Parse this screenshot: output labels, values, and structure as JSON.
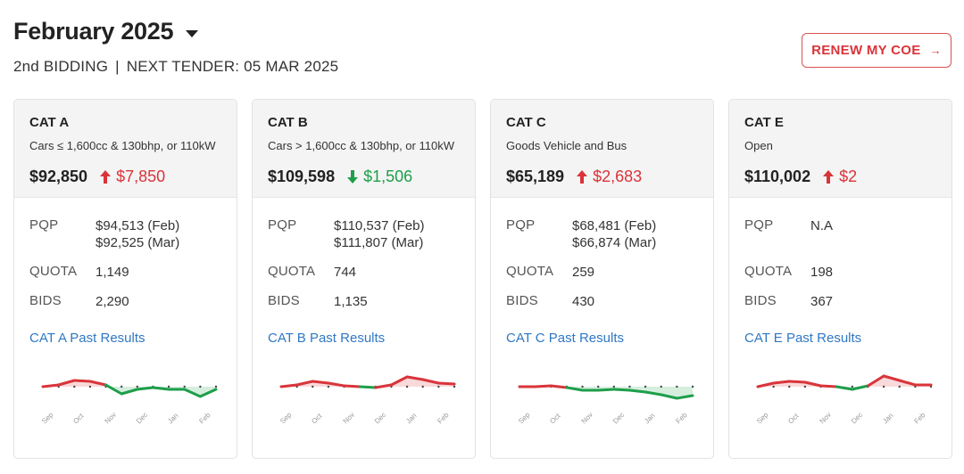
{
  "header": {
    "title": "February 2025",
    "bidding": "2nd BIDDING",
    "separator": "|",
    "next_tender": "NEXT TENDER: 05 MAR 2025"
  },
  "renew_button": {
    "label": "RENEW MY COE",
    "arrow": "→"
  },
  "labels": {
    "pqp": "PQP",
    "quota": "QUOTA",
    "bids": "BIDS"
  },
  "colors": {
    "up": "#d9343a",
    "down": "#1e9e4a",
    "link": "#2f78c4"
  },
  "chart_data": [
    {
      "type": "line",
      "x": [
        "Sep",
        "",
        "Oct",
        "",
        "Nov",
        "",
        "Dec",
        "",
        "Jan",
        "",
        "Feb",
        ""
      ],
      "values": [
        0.52,
        0.5,
        0.45,
        0.46,
        0.5,
        0.6,
        0.55,
        0.53,
        0.55,
        0.55,
        0.63,
        0.55
      ],
      "tick_labels": [
        "Sep",
        "Oct",
        "Nov",
        "Dec",
        "Jan",
        "Feb"
      ]
    },
    {
      "type": "line",
      "x": [
        "Sep",
        "",
        "Oct",
        "",
        "Nov",
        "",
        "Dec",
        "",
        "Jan",
        "",
        "Feb",
        ""
      ],
      "values": [
        0.52,
        0.5,
        0.46,
        0.48,
        0.51,
        0.52,
        0.53,
        0.5,
        0.41,
        0.44,
        0.48,
        0.49
      ],
      "tick_labels": [
        "Sep",
        "Oct",
        "Nov",
        "Dec",
        "Jan",
        "Feb"
      ]
    },
    {
      "type": "line",
      "x": [
        "Sep",
        "",
        "Oct",
        "",
        "Nov",
        "",
        "Dec",
        "",
        "Jan",
        "",
        "Feb",
        ""
      ],
      "values": [
        0.52,
        0.52,
        0.51,
        0.53,
        0.56,
        0.56,
        0.55,
        0.56,
        0.58,
        0.61,
        0.65,
        0.62
      ],
      "tick_labels": [
        "Sep",
        "Oct",
        "Nov",
        "Dec",
        "Jan",
        "Feb"
      ]
    },
    {
      "type": "line",
      "x": [
        "Sep",
        "",
        "Oct",
        "",
        "Nov",
        "",
        "Dec",
        "",
        "Jan",
        "",
        "Feb",
        ""
      ],
      "values": [
        0.52,
        0.48,
        0.46,
        0.47,
        0.51,
        0.52,
        0.55,
        0.51,
        0.4,
        0.45,
        0.5,
        0.5
      ],
      "tick_labels": [
        "Sep",
        "Oct",
        "Nov",
        "Dec",
        "Jan",
        "Feb"
      ]
    }
  ],
  "cards": [
    {
      "name": "CAT A",
      "desc": "Cars ≤ 1,600cc & 130bhp, or 110kW",
      "price": "$92,850",
      "change": "$7,850",
      "direction": "up",
      "pqp1": "$94,513 (Feb)",
      "pqp2": "$92,525 (Mar)",
      "quota": "1,149",
      "bids": "2,290",
      "link": "CAT A Past Results"
    },
    {
      "name": "CAT B",
      "desc": "Cars > 1,600cc & 130bhp, or 110kW",
      "price": "$109,598",
      "change": "$1,506",
      "direction": "down",
      "pqp1": "$110,537 (Feb)",
      "pqp2": "$111,807 (Mar)",
      "quota": "744",
      "bids": "1,135",
      "link": "CAT B Past Results"
    },
    {
      "name": "CAT C",
      "desc": "Goods Vehicle and Bus",
      "price": "$65,189",
      "change": "$2,683",
      "direction": "up",
      "pqp1": "$68,481 (Feb)",
      "pqp2": "$66,874 (Mar)",
      "quota": "259",
      "bids": "430",
      "link": "CAT C Past Results"
    },
    {
      "name": "CAT E",
      "desc": "Open",
      "price": "$110,002",
      "change": "$2",
      "direction": "up",
      "pqp1": "N.A",
      "pqp2": "",
      "quota": "198",
      "bids": "367",
      "link": "CAT E Past Results"
    }
  ]
}
